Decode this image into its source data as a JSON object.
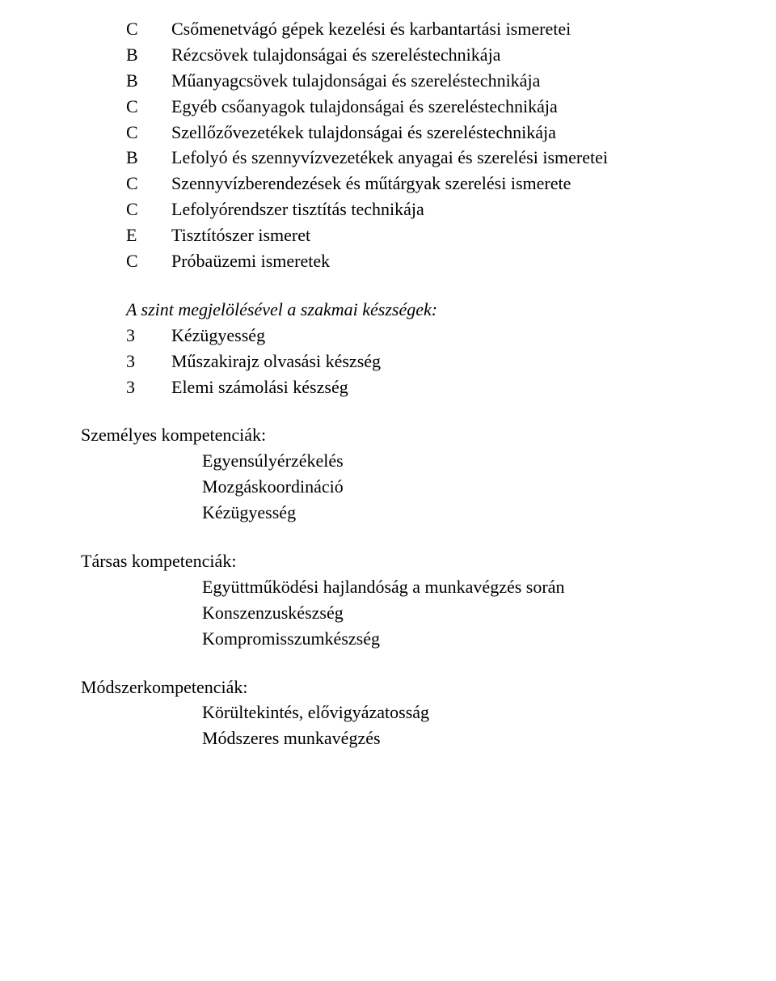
{
  "topics": [
    {
      "code": "C",
      "text": "Csőmenetvágó gépek kezelési és karbantartási ismeretei"
    },
    {
      "code": "B",
      "text": "Rézcsövek tulajdonságai és szereléstechnikája"
    },
    {
      "code": "B",
      "text": "Műanyagcsövek tulajdonságai és szereléstechnikája"
    },
    {
      "code": "C",
      "text": "Egyéb csőanyagok tulajdonságai és szereléstechnikája"
    },
    {
      "code": "C",
      "text": "Szellőzővezetékek tulajdonságai és szereléstechnikája"
    },
    {
      "code": "B",
      "text": "Lefolyó és szennyvízvezetékek anyagai és szerelési ismeretei"
    },
    {
      "code": "C",
      "text": "Szennyvízberendezések és műtárgyak szerelési ismerete"
    },
    {
      "code": "C",
      "text": "Lefolyórendszer tisztítás technikája"
    },
    {
      "code": "E",
      "text": "Tisztítószer ismeret"
    },
    {
      "code": "C",
      "text": "Próbaüzemi ismeretek"
    }
  ],
  "skillsHeading": "A szint megjelölésével a szakmai készségek:",
  "skills": [
    {
      "code": "3",
      "text": "Kézügyesség"
    },
    {
      "code": "3",
      "text": "Műszakirajz olvasási készség"
    },
    {
      "code": "3",
      "text": "Elemi számolási készség"
    }
  ],
  "personalHeading": "Személyes kompetenciák:",
  "personal": [
    "Egyensúlyérzékelés",
    "Mozgáskoordináció",
    "Kézügyesség"
  ],
  "socialHeading": "Társas kompetenciák:",
  "social": [
    "Együttműködési hajlandóság a munkavégzés során",
    "Konszenzuskészség",
    "Kompromisszumkészség"
  ],
  "methodHeading": "Módszerkompetenciák:",
  "method": [
    "Körültekintés, elővigyázatosság",
    "Módszeres munkavégzés"
  ]
}
